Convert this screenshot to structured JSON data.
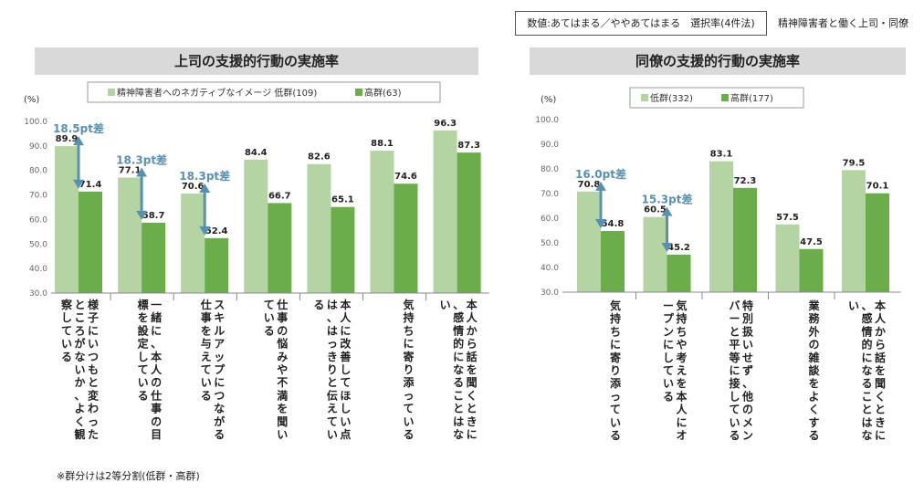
{
  "header": {
    "note": "数値:あてはまる／ややあてはまる　選択率(4件法)",
    "respondents": "精神障害者と働く上司・同僚"
  },
  "footnote": "※群分けは2等分割(低群・高群)",
  "colors": {
    "low": "#b5d4a4",
    "high": "#6aad4a",
    "arrow": "#5b8fb0",
    "title_bg": "#d9d9d9"
  },
  "chart_data": [
    {
      "type": "bar",
      "title": "上司の支援的行動の実施率",
      "ylabel": "(%)",
      "ylim": [
        30,
        100
      ],
      "yticks": [
        "100.0",
        "90.0",
        "80.0",
        "70.0",
        "60.0",
        "50.0",
        "40.0",
        "30.0"
      ],
      "grid": false,
      "legend_position": "top",
      "categories": [
        "様子にいつもと変わったところがないか、よく観察している",
        "一緒に、本人の仕事の目標を設定している",
        "スキルアップにつながる仕事を与えている",
        "仕事の悩みや不満を聞いている",
        "本人に改善してほしい点は、はっきりと伝えている",
        "気持ちに寄り添っている",
        "本人から話を聞くときに、感情的になることはない"
      ],
      "series": [
        {
          "name": "精神障害者へのネガティブなイメージ 低群(109)",
          "values": [
            89.9,
            77.1,
            70.6,
            84.4,
            82.6,
            88.1,
            96.3
          ]
        },
        {
          "name": "高群(63)",
          "values": [
            71.4,
            58.7,
            52.4,
            66.7,
            65.1,
            74.6,
            87.3
          ]
        }
      ],
      "annotations": [
        {
          "category_index": 0,
          "text": "18.5pt差"
        },
        {
          "category_index": 1,
          "text": "18.3pt差"
        },
        {
          "category_index": 2,
          "text": "18.3pt差"
        }
      ]
    },
    {
      "type": "bar",
      "title": "同僚の支援的行動の実施率",
      "ylabel": "(%)",
      "ylim": [
        30,
        100
      ],
      "yticks": [
        "100.0",
        "90.0",
        "80.0",
        "70.0",
        "60.0",
        "50.0",
        "40.0",
        "30.0"
      ],
      "grid": false,
      "legend_position": "top",
      "categories": [
        "気持ちに寄り添っている",
        "気持ちや考えを本人にオープンにしている",
        "特別扱いせず、他のメンバーと平等に接している",
        "業務外の雑談をよくする",
        "本人から話を聞くときに、感情的になることはない"
      ],
      "series": [
        {
          "name": "低群(332)",
          "values": [
            70.8,
            60.5,
            83.1,
            57.5,
            79.5
          ]
        },
        {
          "name": "高群(177)",
          "values": [
            54.8,
            45.2,
            72.3,
            47.5,
            70.1
          ]
        }
      ],
      "annotations": [
        {
          "category_index": 0,
          "text": "16.0pt差"
        },
        {
          "category_index": 1,
          "text": "15.3pt差"
        }
      ]
    }
  ]
}
